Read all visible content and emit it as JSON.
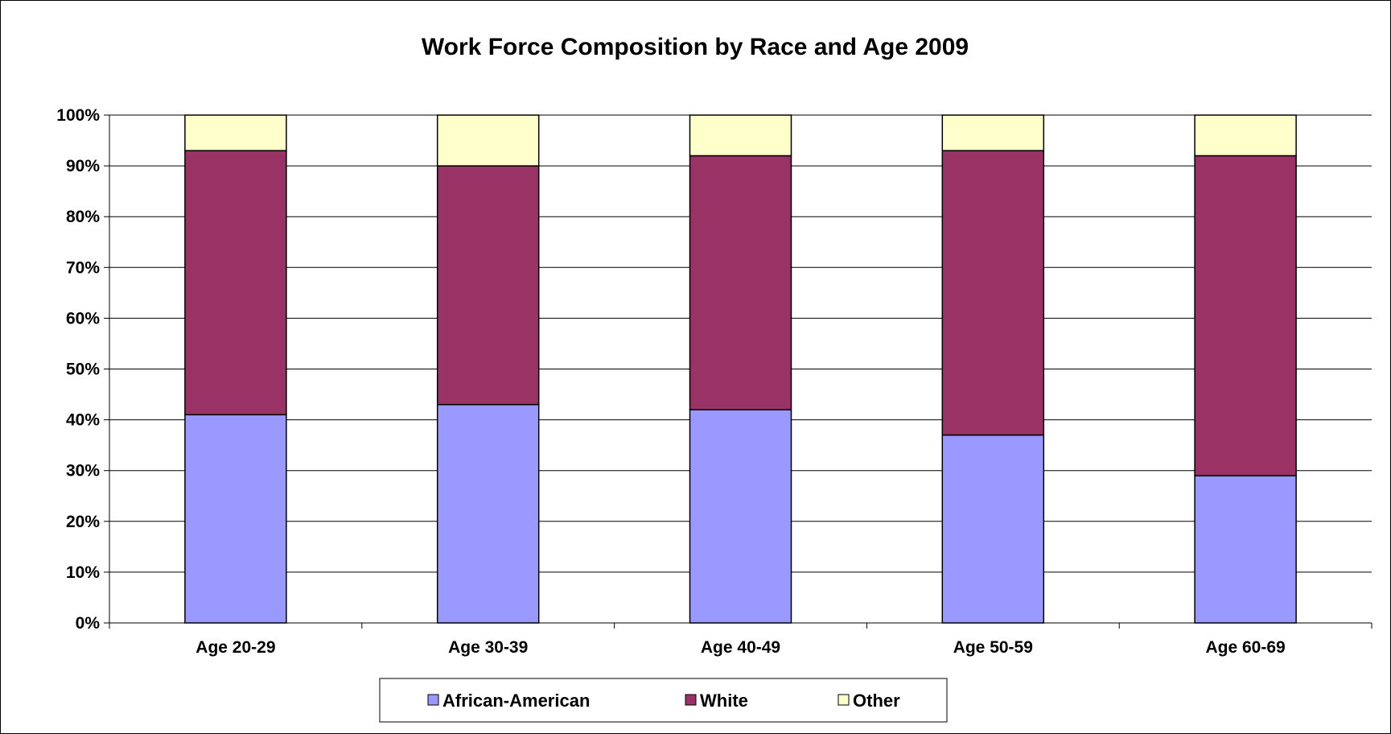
{
  "chart_data": {
    "type": "bar",
    "stacked": "percent",
    "title": "Work Force Composition by Race and Age 2009",
    "xlabel": "",
    "ylabel": "",
    "ylim": [
      0,
      100
    ],
    "yticks": [
      "0%",
      "10%",
      "20%",
      "30%",
      "40%",
      "50%",
      "60%",
      "70%",
      "80%",
      "90%",
      "100%"
    ],
    "categories": [
      "Age 20-29",
      "Age 30-39",
      "Age 40-49",
      "Age 50-59",
      "Age 60-69"
    ],
    "series": [
      {
        "name": "African-American",
        "color": "#9999ff",
        "values": [
          41,
          43,
          42,
          37,
          29
        ]
      },
      {
        "name": "White",
        "color": "#993366",
        "values": [
          52,
          47,
          50,
          56,
          63
        ]
      },
      {
        "name": "Other",
        "color": "#ffffcc",
        "values": [
          7,
          10,
          8,
          7,
          8
        ]
      }
    ],
    "grid": true,
    "legend": "bottom"
  }
}
